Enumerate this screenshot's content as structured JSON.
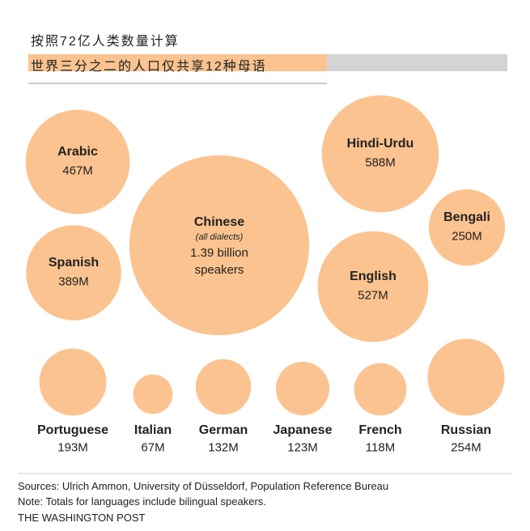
{
  "chart_data": {
    "type": "bubble",
    "title": "按照72亿人类数量计算",
    "subtitle": "世界三分之二的人口仅共享12种母语",
    "categories": [
      "Arabic",
      "Chinese",
      "Hindi-Urdu",
      "Bengali",
      "Spanish",
      "English",
      "Portuguese",
      "Italian",
      "German",
      "Japanese",
      "French",
      "Russian"
    ],
    "values": [
      467,
      1390,
      588,
      250,
      389,
      527,
      193,
      67,
      132,
      123,
      118,
      254
    ],
    "value_labels": [
      "467M",
      "1.39 billion speakers",
      "588M",
      "250M",
      "389M",
      "527M",
      "193M",
      "67M",
      "132M",
      "123M",
      "118M",
      "254M"
    ],
    "annotations": [
      "(all dialects)"
    ],
    "color": "#fbc38f",
    "source": "Sources: Ulrich Ammon, University of Düsseldorf, Population Reference Bureau",
    "note": "Note: Totals for languages include bilingual speakers.",
    "credit": "THE WASHINGTON POST"
  }
}
